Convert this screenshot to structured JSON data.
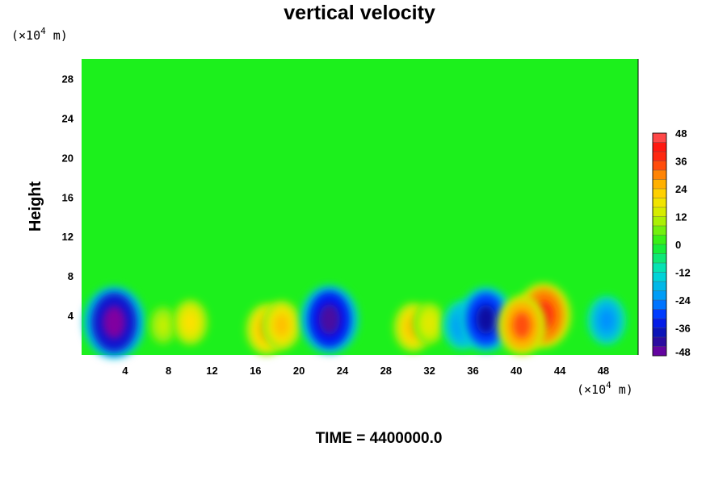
{
  "chart_data": {
    "type": "heatmap",
    "title": "vertical velocity",
    "ylabel": "Height",
    "x_unit": "(×10",
    "x_unit_exp": "4",
    "x_unit_tail": " m)",
    "y_unit": "(×10",
    "y_unit_exp": "4",
    "y_unit_tail": " m)",
    "xlim": [
      0,
      51.2
    ],
    "ylim": [
      0,
      30
    ],
    "x_ticks": [
      "4",
      "8",
      "12",
      "16",
      "20",
      "24",
      "28",
      "32",
      "36",
      "40",
      "44",
      "48"
    ],
    "y_ticks": [
      "4",
      "8",
      "12",
      "16",
      "20",
      "24",
      "28"
    ],
    "colorbar": {
      "min": -48,
      "max": 48,
      "step": 4,
      "tick_labels": [
        "48",
        "36",
        "24",
        "12",
        "0",
        "-12",
        "-24",
        "-36",
        "-48"
      ]
    },
    "features": [
      {
        "x": 3.0,
        "y": 3.3,
        "value": -48
      },
      {
        "x": 7.5,
        "y": 3.0,
        "value": 12
      },
      {
        "x": 10.0,
        "y": 3.3,
        "value": 20
      },
      {
        "x": 17.0,
        "y": 2.6,
        "value": 26
      },
      {
        "x": 18.4,
        "y": 3.0,
        "value": 24
      },
      {
        "x": 22.8,
        "y": 3.6,
        "value": -44
      },
      {
        "x": 30.5,
        "y": 2.8,
        "value": 24
      },
      {
        "x": 32.0,
        "y": 3.2,
        "value": 16
      },
      {
        "x": 35.0,
        "y": 3.0,
        "value": -24
      },
      {
        "x": 37.2,
        "y": 3.6,
        "value": -40
      },
      {
        "x": 42.5,
        "y": 4.0,
        "value": 40
      },
      {
        "x": 40.5,
        "y": 3.0,
        "value": 34
      },
      {
        "x": 48.3,
        "y": 3.5,
        "value": -24
      }
    ],
    "footer": "TIME = 4400000.0"
  }
}
